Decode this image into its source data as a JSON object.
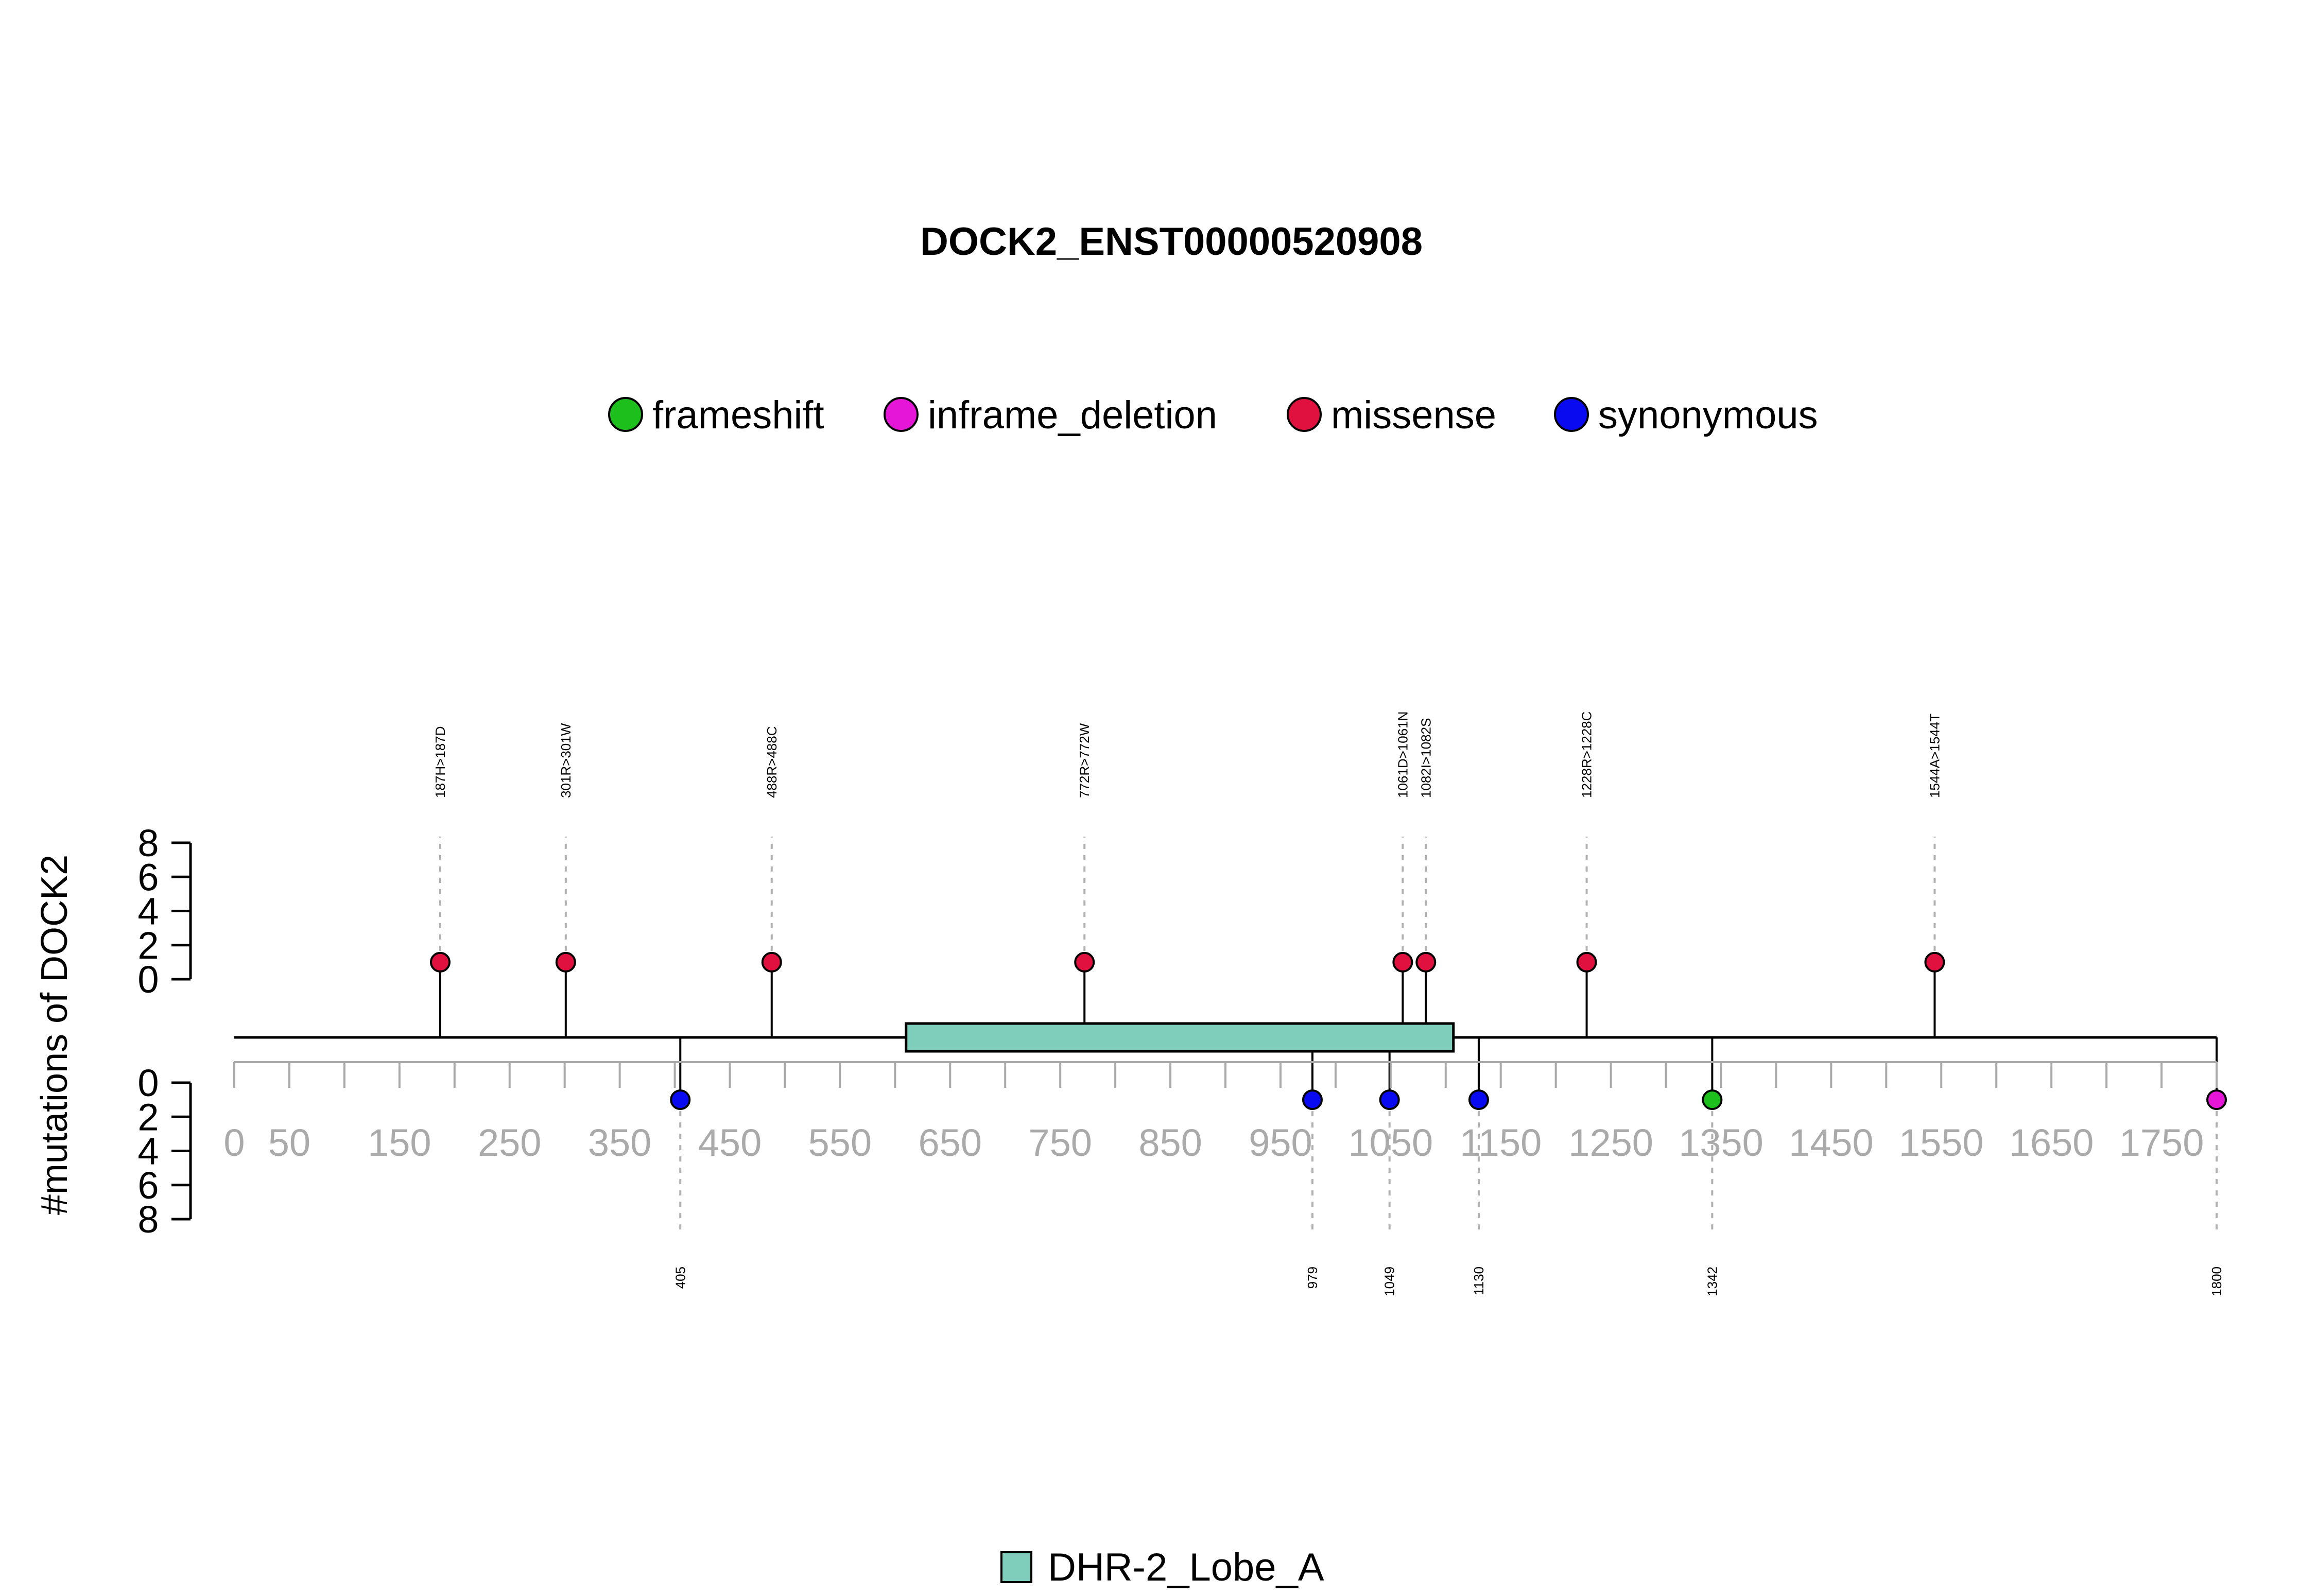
{
  "chart_data": {
    "type": "lollipop",
    "title": "DOCK2_ENST00000520908",
    "ylabel": "#mutations of DOCK2",
    "xlim": [
      0,
      1800
    ],
    "ylim_top": [
      0,
      8
    ],
    "ylim_bottom": [
      0,
      8
    ],
    "x_ticks": [
      0,
      50,
      150,
      250,
      350,
      450,
      550,
      650,
      750,
      850,
      950,
      1050,
      1150,
      1250,
      1350,
      1450,
      1550,
      1650,
      1750
    ],
    "y_ticks": [
      0,
      2,
      4,
      6,
      8
    ],
    "legend": [
      {
        "name": "frameshift",
        "color": "#1cbf1c"
      },
      {
        "name": "inframe_deletion",
        "color": "#e616d8"
      },
      {
        "name": "missense",
        "color": "#e0103f"
      },
      {
        "name": "synonymous",
        "color": "#0a0af0"
      }
    ],
    "domains": [
      {
        "name": "DHR-2_Lobe_A",
        "start": 610,
        "end": 1107,
        "color": "#7fcdbb"
      }
    ],
    "mutations_top": [
      {
        "position": 187,
        "label": "187H>187D",
        "count": 1,
        "type": "missense"
      },
      {
        "position": 301,
        "label": "301R>301W",
        "count": 1,
        "type": "missense"
      },
      {
        "position": 488,
        "label": "488R>488C",
        "count": 1,
        "type": "missense"
      },
      {
        "position": 772,
        "label": "772R>772W",
        "count": 1,
        "type": "missense"
      },
      {
        "position": 1061,
        "label": "1061D>1061N",
        "count": 1,
        "type": "missense"
      },
      {
        "position": 1082,
        "label": "1082I>1082S",
        "count": 1,
        "type": "missense"
      },
      {
        "position": 1228,
        "label": "1228R>1228C",
        "count": 1,
        "type": "missense"
      },
      {
        "position": 1544,
        "label": "1544A>1544T",
        "count": 1,
        "type": "missense"
      }
    ],
    "mutations_bottom": [
      {
        "position": 405,
        "label": "405",
        "count": 1,
        "type": "synonymous"
      },
      {
        "position": 979,
        "label": "979",
        "count": 1,
        "type": "synonymous"
      },
      {
        "position": 1049,
        "label": "1049",
        "count": 1,
        "type": "synonymous"
      },
      {
        "position": 1130,
        "label": "1130",
        "count": 1,
        "type": "synonymous"
      },
      {
        "position": 1342,
        "label": "1342",
        "count": 1,
        "type": "frameshift"
      },
      {
        "position": 1800,
        "label": "1800",
        "count": 1,
        "type": "inframe_deletion"
      }
    ]
  }
}
